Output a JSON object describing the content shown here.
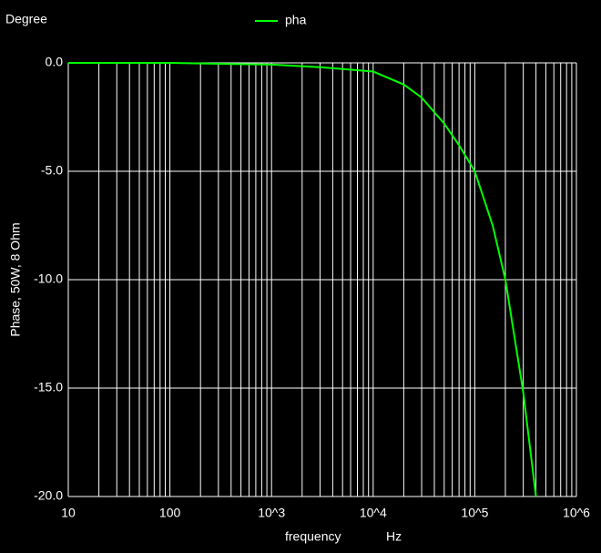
{
  "chart_data": {
    "type": "line",
    "y_unit_label": "Degree",
    "y_label": "Phase, 50W, 8 Ohm",
    "x_label": "frequency",
    "x_unit_label": "Hz",
    "x_log": true,
    "grid": true,
    "minor_grid": true,
    "legend": "top",
    "x": [
      10,
      100,
      400,
      1000,
      3000,
      10000,
      20000,
      30000,
      50000,
      70000,
      100000,
      150000,
      200000,
      300000,
      400000
    ],
    "series": [
      {
        "name": "pha",
        "color": "#00ff00",
        "values": [
          0,
          0,
          -0.05,
          -0.08,
          -0.2,
          -0.4,
          -1.0,
          -1.6,
          -2.8,
          -3.8,
          -5.0,
          -7.5,
          -10.0,
          -15.2,
          -20.0
        ]
      }
    ],
    "xlim": [
      10,
      1000000
    ],
    "xticks": [
      10,
      100,
      {
        "value": 1000,
        "label": "10^3"
      },
      {
        "value": 10000,
        "label": "10^4"
      },
      {
        "value": 100000,
        "label": "10^5"
      },
      {
        "value": 1000000,
        "label": "10^6"
      }
    ],
    "ylim": [
      -20,
      0
    ],
    "yticks": [
      {
        "value": 0,
        "label": "0.0"
      },
      {
        "value": -5,
        "label": "-5.0"
      },
      {
        "value": -10,
        "label": "-10.0"
      },
      {
        "value": -15,
        "label": "-15.0"
      },
      {
        "value": -20,
        "label": "-20.0"
      }
    ]
  }
}
